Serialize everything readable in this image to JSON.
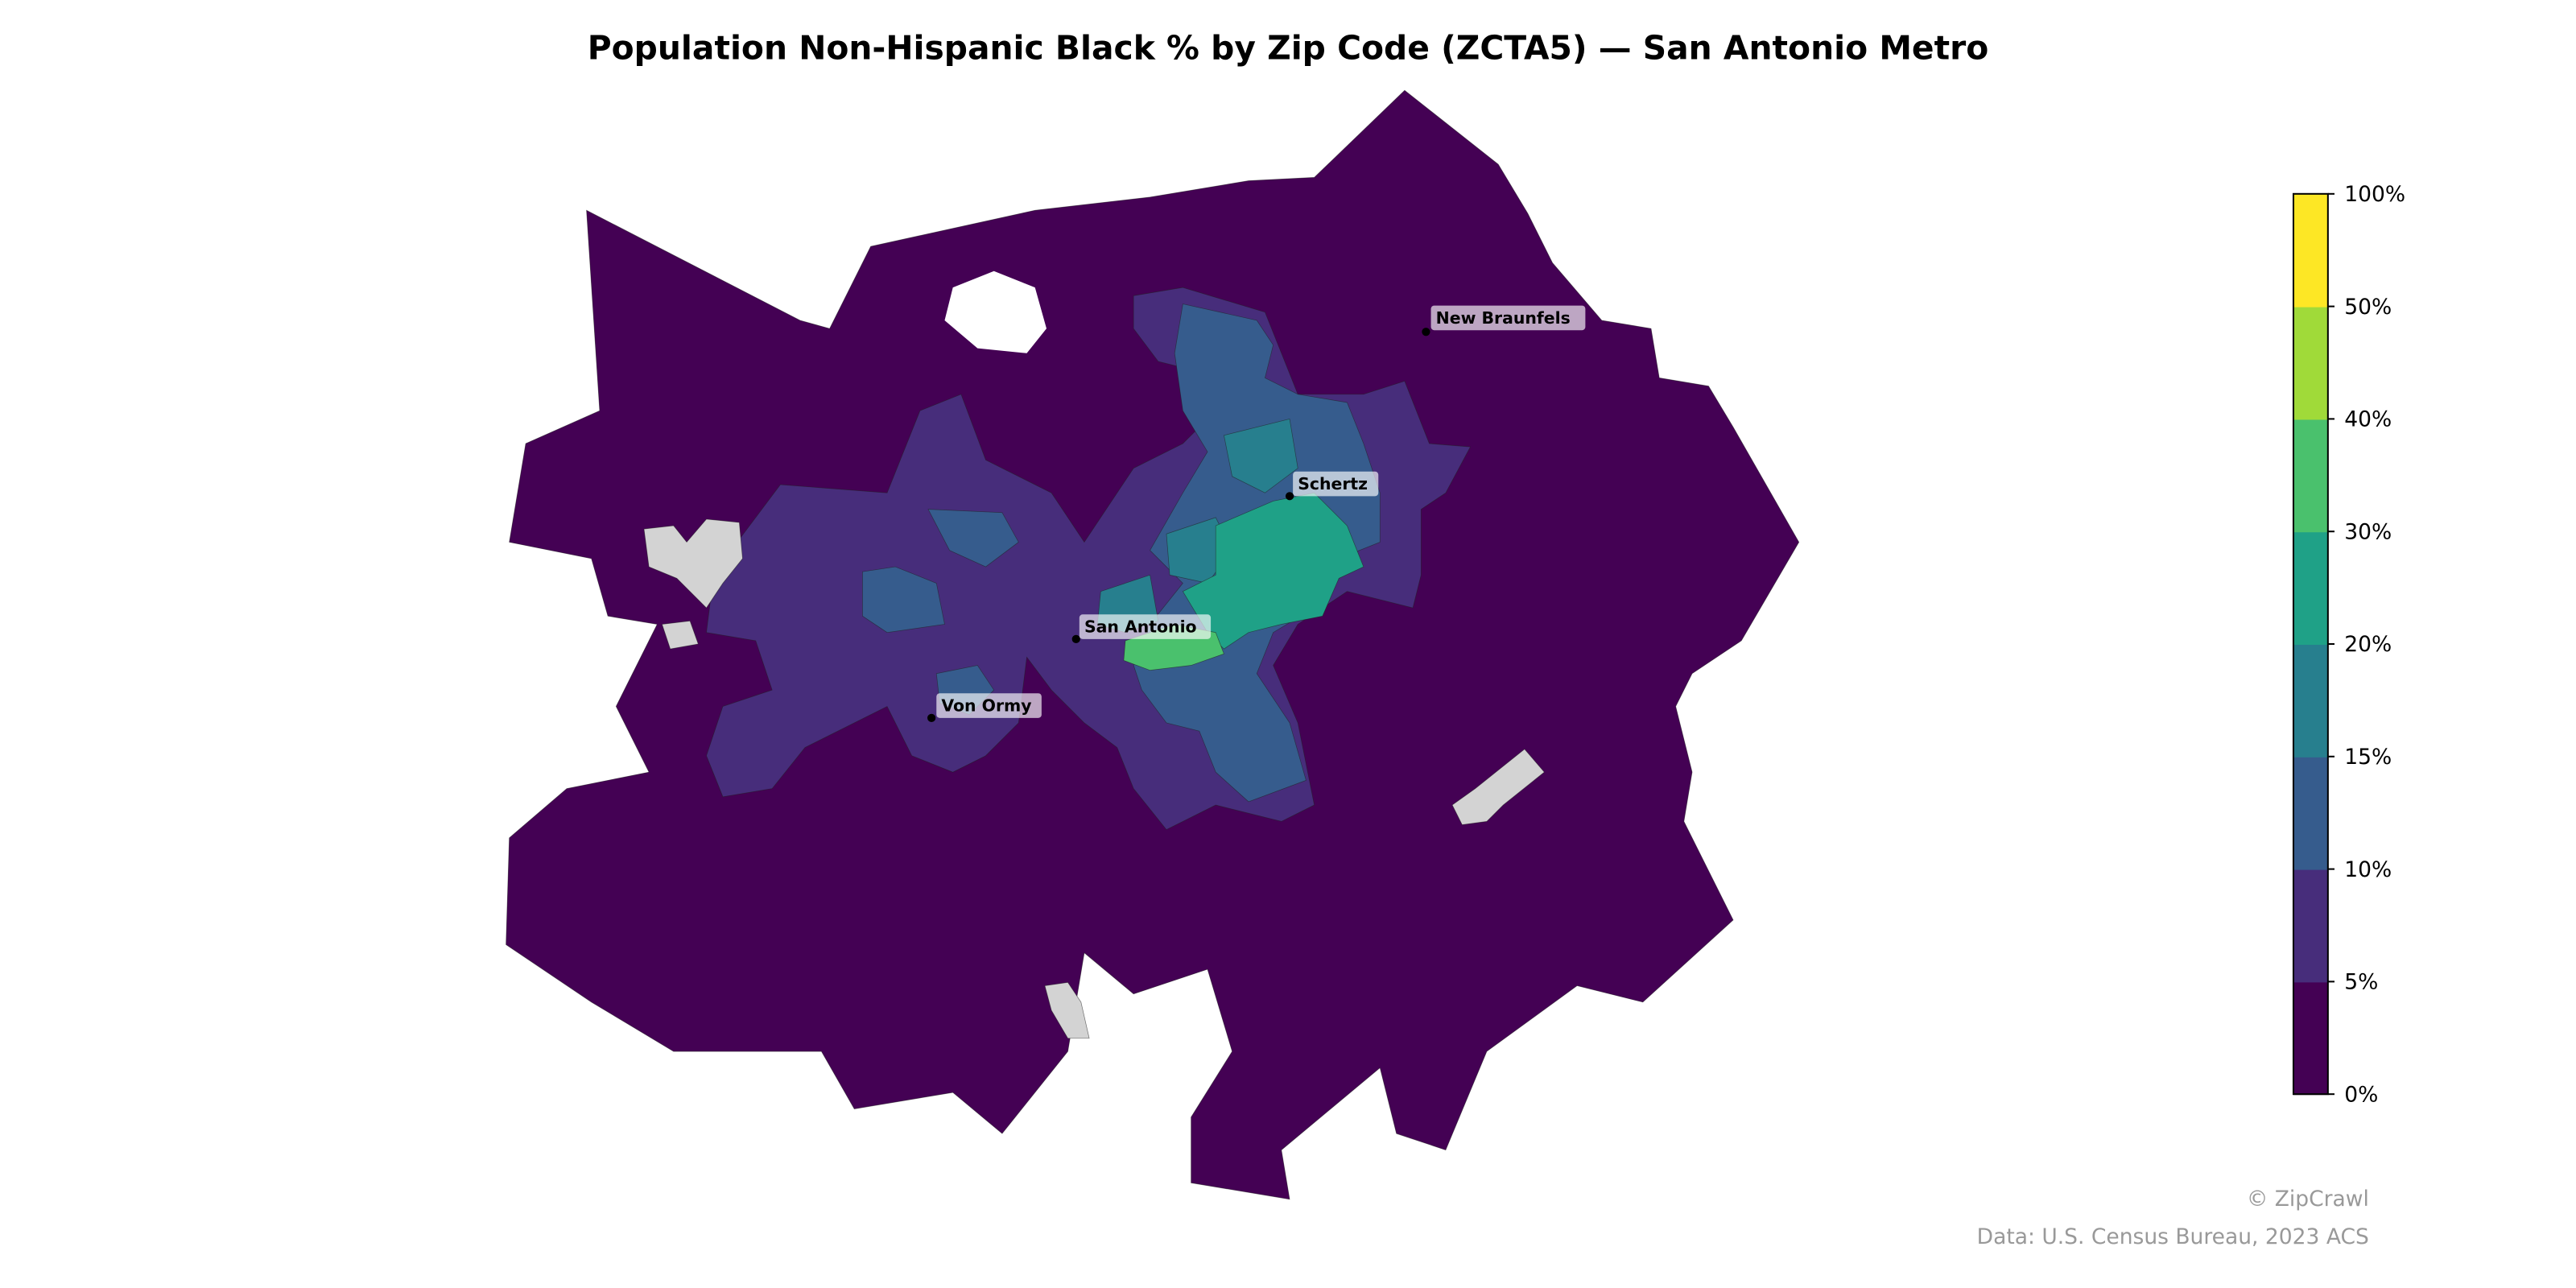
{
  "title": "Population Non-Hispanic Black % by Zip Code (ZCTA5) — San Antonio Metro",
  "chart_data": {
    "type": "choropleth",
    "title": "Population Non-Hispanic Black % by Zip Code (ZCTA5) — San Antonio Metro",
    "colorbar": {
      "bins": [
        {
          "from": 0,
          "to": 5,
          "color": "#440154"
        },
        {
          "from": 5,
          "to": 10,
          "color": "#472d7b"
        },
        {
          "from": 10,
          "to": 15,
          "color": "#365c8d"
        },
        {
          "from": 15,
          "to": 20,
          "color": "#277f8e"
        },
        {
          "from": 20,
          "to": 30,
          "color": "#1fa187"
        },
        {
          "from": 30,
          "to": 40,
          "color": "#4ac16d"
        },
        {
          "from": 40,
          "to": 50,
          "color": "#a0da39"
        },
        {
          "from": 50,
          "to": 100,
          "color": "#fde725"
        }
      ],
      "tick_labels": [
        "0%",
        "5%",
        "10%",
        "15%",
        "20%",
        "30%",
        "40%",
        "50%",
        "100%"
      ]
    },
    "no_data_color": "#d3d3d3",
    "cities": [
      "New Braunfels",
      "Schertz",
      "San Antonio",
      "Von Ormy"
    ]
  },
  "footer": {
    "credit": "© ZipCrawl",
    "source": "Data: U.S. Census Bureau, 2023 ACS"
  }
}
